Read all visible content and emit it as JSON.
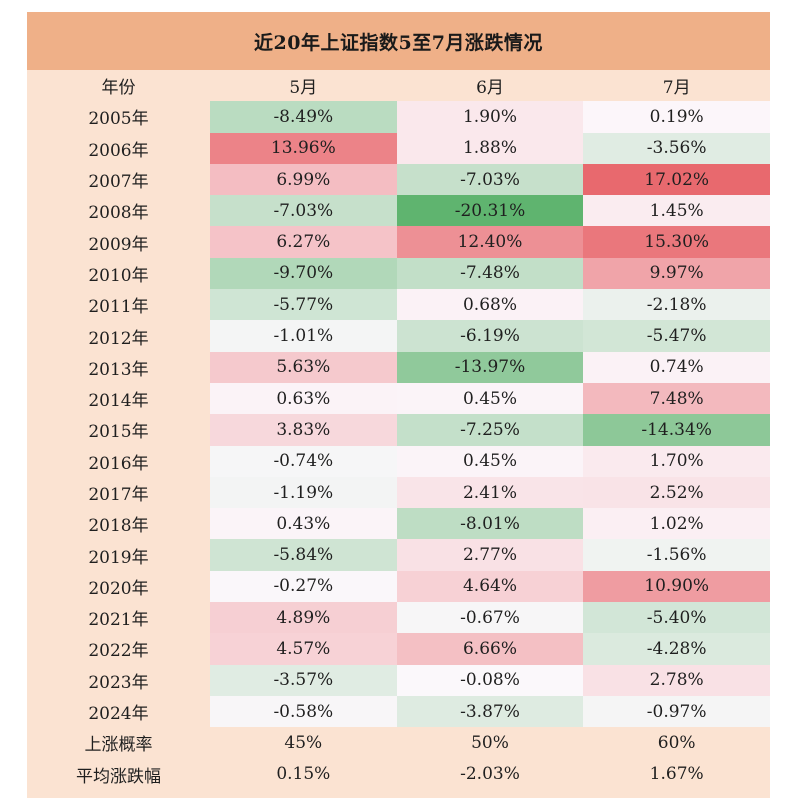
{
  "chart_data": {
    "type": "table",
    "title": "近20年上证指数5至7月涨跌情况",
    "header": [
      "年份",
      "5月",
      "6月",
      "7月"
    ],
    "rows": [
      {
        "year": "2005年",
        "values": [
          -8.49,
          1.9,
          0.19
        ],
        "labels": [
          "-8.49%",
          "1.90%",
          "0.19%"
        ]
      },
      {
        "year": "2006年",
        "values": [
          13.96,
          1.88,
          -3.56
        ],
        "labels": [
          "13.96%",
          "1.88%",
          "-3.56%"
        ]
      },
      {
        "year": "2007年",
        "values": [
          6.99,
          -7.03,
          17.02
        ],
        "labels": [
          "6.99%",
          "-7.03%",
          "17.02%"
        ]
      },
      {
        "year": "2008年",
        "values": [
          -7.03,
          -20.31,
          1.45
        ],
        "labels": [
          "-7.03%",
          "-20.31%",
          "1.45%"
        ]
      },
      {
        "year": "2009年",
        "values": [
          6.27,
          12.4,
          15.3
        ],
        "labels": [
          "6.27%",
          "12.40%",
          "15.30%"
        ]
      },
      {
        "year": "2010年",
        "values": [
          -9.7,
          -7.48,
          9.97
        ],
        "labels": [
          "-9.70%",
          "-7.48%",
          "9.97%"
        ]
      },
      {
        "year": "2011年",
        "values": [
          -5.77,
          0.68,
          -2.18
        ],
        "labels": [
          "-5.77%",
          "0.68%",
          "-2.18%"
        ]
      },
      {
        "year": "2012年",
        "values": [
          -1.01,
          -6.19,
          -5.47
        ],
        "labels": [
          "-1.01%",
          "-6.19%",
          "-5.47%"
        ]
      },
      {
        "year": "2013年",
        "values": [
          5.63,
          -13.97,
          0.74
        ],
        "labels": [
          "5.63%",
          "-13.97%",
          "0.74%"
        ]
      },
      {
        "year": "2014年",
        "values": [
          0.63,
          0.45,
          7.48
        ],
        "labels": [
          "0.63%",
          "0.45%",
          "7.48%"
        ]
      },
      {
        "year": "2015年",
        "values": [
          3.83,
          -7.25,
          -14.34
        ],
        "labels": [
          "3.83%",
          "-7.25%",
          "-14.34%"
        ]
      },
      {
        "year": "2016年",
        "values": [
          -0.74,
          0.45,
          1.7
        ],
        "labels": [
          "-0.74%",
          "0.45%",
          "1.70%"
        ]
      },
      {
        "year": "2017年",
        "values": [
          -1.19,
          2.41,
          2.52
        ],
        "labels": [
          "-1.19%",
          "2.41%",
          "2.52%"
        ]
      },
      {
        "year": "2018年",
        "values": [
          0.43,
          -8.01,
          1.02
        ],
        "labels": [
          "0.43%",
          "-8.01%",
          "1.02%"
        ]
      },
      {
        "year": "2019年",
        "values": [
          -5.84,
          2.77,
          -1.56
        ],
        "labels": [
          "-5.84%",
          "2.77%",
          "-1.56%"
        ]
      },
      {
        "year": "2020年",
        "values": [
          -0.27,
          4.64,
          10.9
        ],
        "labels": [
          "-0.27%",
          "4.64%",
          "10.90%"
        ]
      },
      {
        "year": "2021年",
        "values": [
          4.89,
          -0.67,
          -5.4
        ],
        "labels": [
          "4.89%",
          "-0.67%",
          "-5.40%"
        ]
      },
      {
        "year": "2022年",
        "values": [
          4.57,
          6.66,
          -4.28
        ],
        "labels": [
          "4.57%",
          "6.66%",
          "-4.28%"
        ]
      },
      {
        "year": "2023年",
        "values": [
          -3.57,
          -0.08,
          2.78
        ],
        "labels": [
          "-3.57%",
          "-0.08%",
          "2.78%"
        ]
      },
      {
        "year": "2024年",
        "values": [
          -0.58,
          -3.87,
          -0.97
        ],
        "labels": [
          "-0.58%",
          "-3.87%",
          "-0.97%"
        ]
      }
    ],
    "summary": [
      {
        "label": "上涨概率",
        "values": [
          "45%",
          "50%",
          "60%"
        ]
      },
      {
        "label": "平均涨跌幅",
        "values": [
          "0.15%",
          "-2.03%",
          "1.67%"
        ]
      }
    ],
    "colors": {
      "title_bg": "#efb088",
      "sheet_bg": "#fbe3d2",
      "neutral": "#fcf8fc",
      "positive_max": "#e8696e",
      "negative_max": "#5fb46f"
    }
  }
}
